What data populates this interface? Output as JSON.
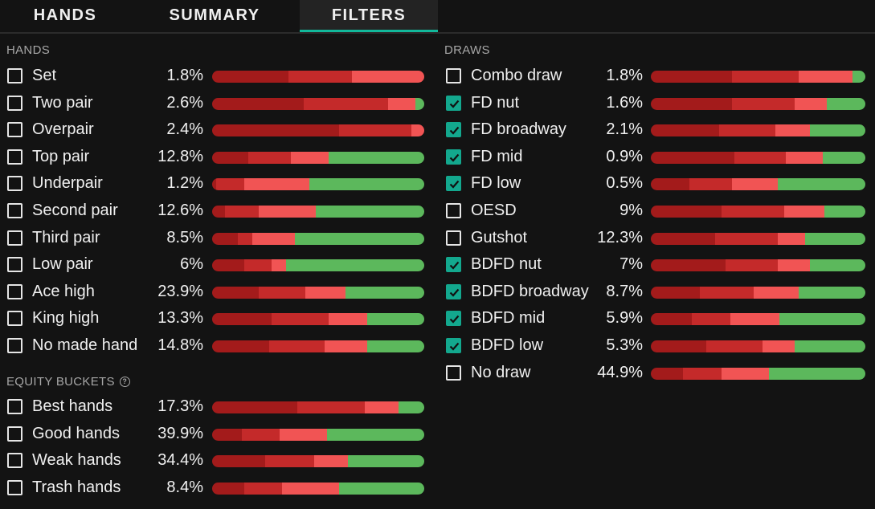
{
  "tabs": [
    {
      "label": "HANDS",
      "active": false
    },
    {
      "label": "SUMMARY",
      "active": false
    },
    {
      "label": "FILTERS",
      "active": true
    }
  ],
  "colors": {
    "seg1": "#a31b1b",
    "seg2": "#c42a2a",
    "seg3": "#f15454",
    "seg4": "#5cb85c",
    "accent": "#13a88e"
  },
  "hands": {
    "title": "HANDS",
    "rows": [
      {
        "label": "Set",
        "pct": "1.8%",
        "checked": false,
        "segments": [
          36,
          30,
          34,
          0
        ]
      },
      {
        "label": "Two pair",
        "pct": "2.6%",
        "checked": false,
        "segments": [
          43,
          40,
          13,
          4
        ]
      },
      {
        "label": "Overpair",
        "pct": "2.4%",
        "checked": false,
        "segments": [
          60,
          34,
          6,
          0
        ]
      },
      {
        "label": "Top pair",
        "pct": "12.8%",
        "checked": false,
        "segments": [
          17,
          20,
          18,
          45
        ]
      },
      {
        "label": "Underpair",
        "pct": "1.2%",
        "checked": false,
        "segments": [
          2,
          13,
          31,
          54
        ]
      },
      {
        "label": "Second pair",
        "pct": "12.6%",
        "checked": false,
        "segments": [
          6,
          16,
          27,
          51
        ]
      },
      {
        "label": "Third pair",
        "pct": "8.5%",
        "checked": false,
        "segments": [
          12,
          7,
          20,
          61
        ]
      },
      {
        "label": "Low pair",
        "pct": "6%",
        "checked": false,
        "segments": [
          15,
          13,
          7,
          65
        ]
      },
      {
        "label": "Ace high",
        "pct": "23.9%",
        "checked": false,
        "segments": [
          22,
          22,
          19,
          37
        ]
      },
      {
        "label": "King high",
        "pct": "13.3%",
        "checked": false,
        "segments": [
          28,
          27,
          18,
          27
        ]
      },
      {
        "label": "No made hand",
        "pct": "14.8%",
        "checked": false,
        "segments": [
          27,
          26,
          20,
          27
        ]
      }
    ]
  },
  "equity": {
    "title": "EQUITY BUCKETS",
    "help_icon": "question-circle-icon",
    "rows": [
      {
        "label": "Best hands",
        "pct": "17.3%",
        "checked": false,
        "segments": [
          40,
          32,
          16,
          12
        ]
      },
      {
        "label": "Good hands",
        "pct": "39.9%",
        "checked": false,
        "segments": [
          14,
          18,
          22,
          46
        ]
      },
      {
        "label": "Weak hands",
        "pct": "34.4%",
        "checked": false,
        "segments": [
          25,
          23,
          16,
          36
        ]
      },
      {
        "label": "Trash hands",
        "pct": "8.4%",
        "checked": false,
        "segments": [
          15,
          18,
          27,
          40
        ]
      }
    ]
  },
  "draws": {
    "title": "DRAWS",
    "rows": [
      {
        "label": "Combo draw",
        "pct": "1.8%",
        "checked": false,
        "segments": [
          38,
          31,
          25,
          6
        ]
      },
      {
        "label": "FD nut",
        "pct": "1.6%",
        "checked": true,
        "segments": [
          38,
          29,
          15,
          18
        ]
      },
      {
        "label": "FD broadway",
        "pct": "2.1%",
        "checked": true,
        "segments": [
          32,
          26,
          16,
          26
        ]
      },
      {
        "label": "FD mid",
        "pct": "0.9%",
        "checked": true,
        "segments": [
          39,
          24,
          17,
          20
        ]
      },
      {
        "label": "FD low",
        "pct": "0.5%",
        "checked": true,
        "segments": [
          18,
          20,
          21,
          41
        ]
      },
      {
        "label": "OESD",
        "pct": "9%",
        "checked": false,
        "segments": [
          33,
          29,
          19,
          19
        ]
      },
      {
        "label": "Gutshot",
        "pct": "12.3%",
        "checked": false,
        "segments": [
          30,
          29,
          13,
          28
        ]
      },
      {
        "label": "BDFD nut",
        "pct": "7%",
        "checked": true,
        "segments": [
          35,
          24,
          15,
          26
        ]
      },
      {
        "label": "BDFD broadway",
        "pct": "8.7%",
        "checked": true,
        "segments": [
          23,
          25,
          21,
          31
        ]
      },
      {
        "label": "BDFD mid",
        "pct": "5.9%",
        "checked": true,
        "segments": [
          19,
          18,
          23,
          40
        ]
      },
      {
        "label": "BDFD low",
        "pct": "5.3%",
        "checked": true,
        "segments": [
          26,
          26,
          15,
          33
        ]
      },
      {
        "label": "No draw",
        "pct": "44.9%",
        "checked": false,
        "segments": [
          15,
          18,
          22,
          45
        ]
      }
    ]
  }
}
